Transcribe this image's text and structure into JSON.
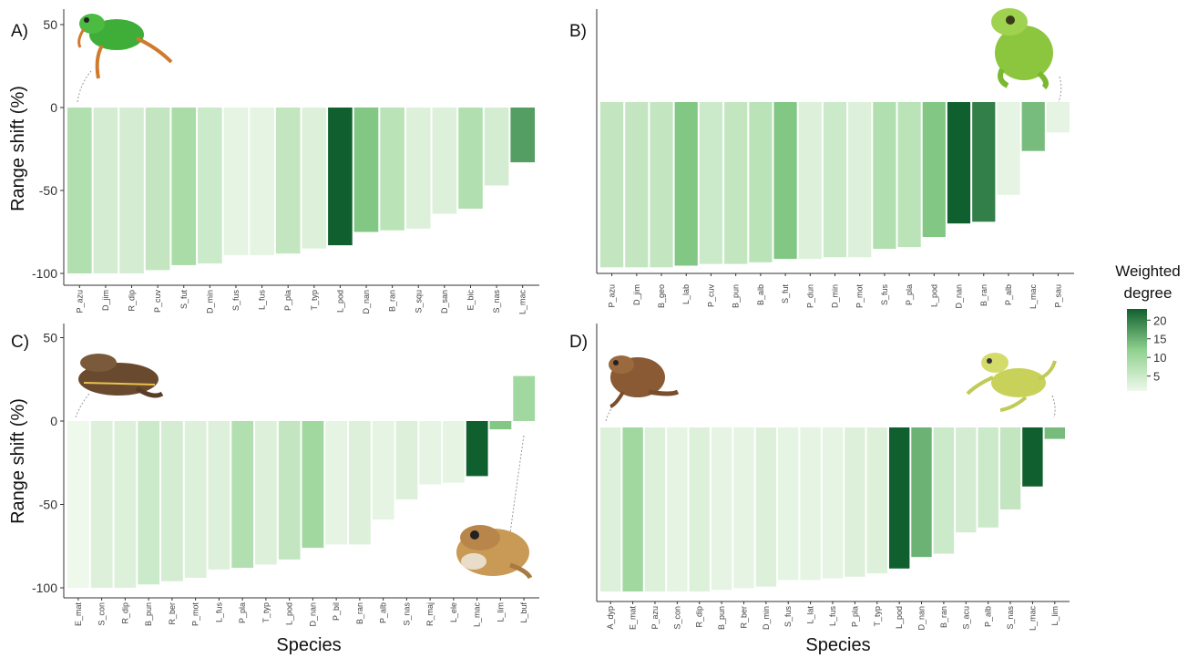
{
  "figure": {
    "xlabel": "Species",
    "ylabel": "Range shift (%)",
    "legend": {
      "title_line1": "Weighted",
      "title_line2": "degree",
      "ticks": [
        "20",
        "15",
        "10",
        "5"
      ],
      "tick_values": [
        20,
        15,
        10,
        5
      ],
      "min": 1,
      "max": 23,
      "color_low": "#eef8eb",
      "color_high": "#10602f"
    }
  },
  "chart_data": [
    {
      "type": "bar",
      "panel": "A)",
      "ylim": [
        -100,
        50
      ],
      "yticks": [
        50,
        0,
        -50,
        -100
      ],
      "categories": [
        "P_azu",
        "D_jim",
        "R_dip",
        "P_cuv",
        "S_fut",
        "D_min",
        "S_fus",
        "L_fus",
        "P_pla",
        "T_typ",
        "L_pod",
        "D_nan",
        "B_ran",
        "S_squ",
        "D_san",
        "E_bic",
        "S_nas",
        "L_mac"
      ],
      "values": [
        -100,
        -100,
        -100,
        -98,
        -95,
        -94,
        -89,
        -89,
        -88,
        -85,
        -83,
        -75,
        -74,
        -73,
        -64,
        -61,
        -47,
        -33
      ],
      "weighted_degree": [
        8,
        4,
        4,
        6,
        9,
        5,
        2,
        2,
        6,
        3,
        23,
        13,
        7,
        3,
        3,
        8,
        4,
        17
      ]
    },
    {
      "type": "bar",
      "panel": "B)",
      "ylim": [
        -100,
        0
      ],
      "yticks": [],
      "categories": [
        "P_azu",
        "D_jim",
        "B_geo",
        "L_lab",
        "P_cuv",
        "B_pun",
        "B_alb",
        "S_fut",
        "P_dun",
        "D_min",
        "P_mot",
        "S_fus",
        "P_pla",
        "L_pod",
        "D_nan",
        "B_ran",
        "P_alb",
        "L_mac",
        "P_sau"
      ],
      "values": [
        -98,
        -98,
        -98,
        -97,
        -96,
        -96,
        -95,
        -93,
        -93,
        -92,
        -92,
        -87,
        -86,
        -80,
        -72,
        -71,
        -55,
        -29,
        -18
      ],
      "weighted_degree": [
        6,
        6,
        6,
        13,
        5,
        6,
        7,
        13,
        3,
        5,
        3,
        8,
        7,
        13,
        23,
        20,
        2,
        14,
        2
      ]
    },
    {
      "type": "bar",
      "panel": "C)",
      "ylim": [
        -100,
        50
      ],
      "yticks": [
        50,
        0,
        -50,
        -100
      ],
      "categories": [
        "E_mat",
        "S_con",
        "R_dip",
        "B_pun",
        "R_ber",
        "P_mot",
        "L_fus",
        "P_pla",
        "T_typ",
        "L_pod",
        "D_nan",
        "P_bil",
        "B_ran",
        "P_alb",
        "S_nas",
        "R_maj",
        "L_ele",
        "L_mac",
        "L_lim",
        "L_buf"
      ],
      "values": [
        -100,
        -100,
        -100,
        -98,
        -96,
        -94,
        -89,
        -88,
        -86,
        -83,
        -76,
        -74,
        -74,
        -59,
        -47,
        -38,
        -37,
        -33,
        -5,
        27
      ],
      "weighted_degree": [
        1,
        3,
        3,
        5,
        4,
        3,
        3,
        8,
        3,
        6,
        10,
        2,
        3,
        2,
        3,
        2,
        2,
        23,
        13,
        10
      ]
    },
    {
      "type": "bar",
      "panel": "D)",
      "ylim": [
        -100,
        0
      ],
      "yticks": [],
      "categories": [
        "A_dyp",
        "E_mat",
        "P_azu",
        "S_con",
        "R_dip",
        "B_pun",
        "R_ber",
        "D_min",
        "S_fus",
        "L_lat",
        "L_fus",
        "P_pla",
        "T_typ",
        "L_pod",
        "D_nan",
        "B_ran",
        "S_acu",
        "P_alb",
        "S_nas",
        "L_mac",
        "L_lim"
      ],
      "values": [
        -100,
        -100,
        -100,
        -100,
        -100,
        -99,
        -98,
        -97,
        -93,
        -93,
        -92,
        -91,
        -89,
        -86,
        -79,
        -77,
        -64,
        -61,
        -50,
        -36,
        -7
      ],
      "weighted_degree": [
        3,
        10,
        3,
        2,
        3,
        2,
        2,
        3,
        2,
        2,
        2,
        3,
        3,
        23,
        15,
        5,
        4,
        5,
        6,
        23,
        14
      ]
    }
  ]
}
